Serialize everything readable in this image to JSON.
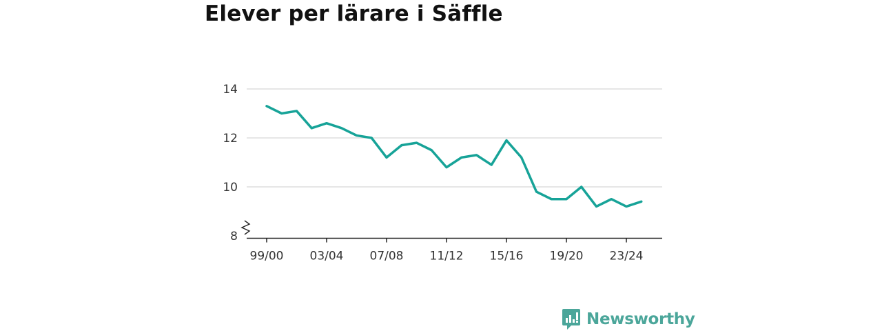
{
  "colors": {
    "line": "#17a398",
    "grid": "#dddddd",
    "axis": "#222222",
    "brand": "#4ba69a"
  },
  "chart_data": {
    "type": "line",
    "title": "Elever per lärare i Säffle",
    "xlabel": "",
    "ylabel": "",
    "ylim": [
      7.9,
      14.2
    ],
    "yticks": [
      8,
      10,
      12,
      14
    ],
    "axis_break": true,
    "grid": "horizontal",
    "x": [
      "99/00",
      "00/01",
      "01/02",
      "02/03",
      "03/04",
      "04/05",
      "05/06",
      "06/07",
      "07/08",
      "08/09",
      "09/10",
      "10/11",
      "11/12",
      "12/13",
      "13/14",
      "14/15",
      "15/16",
      "16/17",
      "17/18",
      "18/19",
      "19/20",
      "20/21",
      "21/22",
      "22/23",
      "23/24",
      "24/25"
    ],
    "xtick_labels": [
      "99/00",
      "03/04",
      "07/08",
      "11/12",
      "15/16",
      "19/20",
      "23/24"
    ],
    "series": [
      {
        "values": [
          13.3,
          13.0,
          13.1,
          12.4,
          12.6,
          12.4,
          12.1,
          12.0,
          11.2,
          11.7,
          11.8,
          11.5,
          10.8,
          11.2,
          11.3,
          10.9,
          11.9,
          11.2,
          9.8,
          9.5,
          9.5,
          10.0,
          9.2,
          9.5,
          9.2,
          9.4
        ]
      }
    ]
  },
  "brand": {
    "name": "Newsworthy",
    "logo_icon": "newsworthy-logo-icon"
  }
}
